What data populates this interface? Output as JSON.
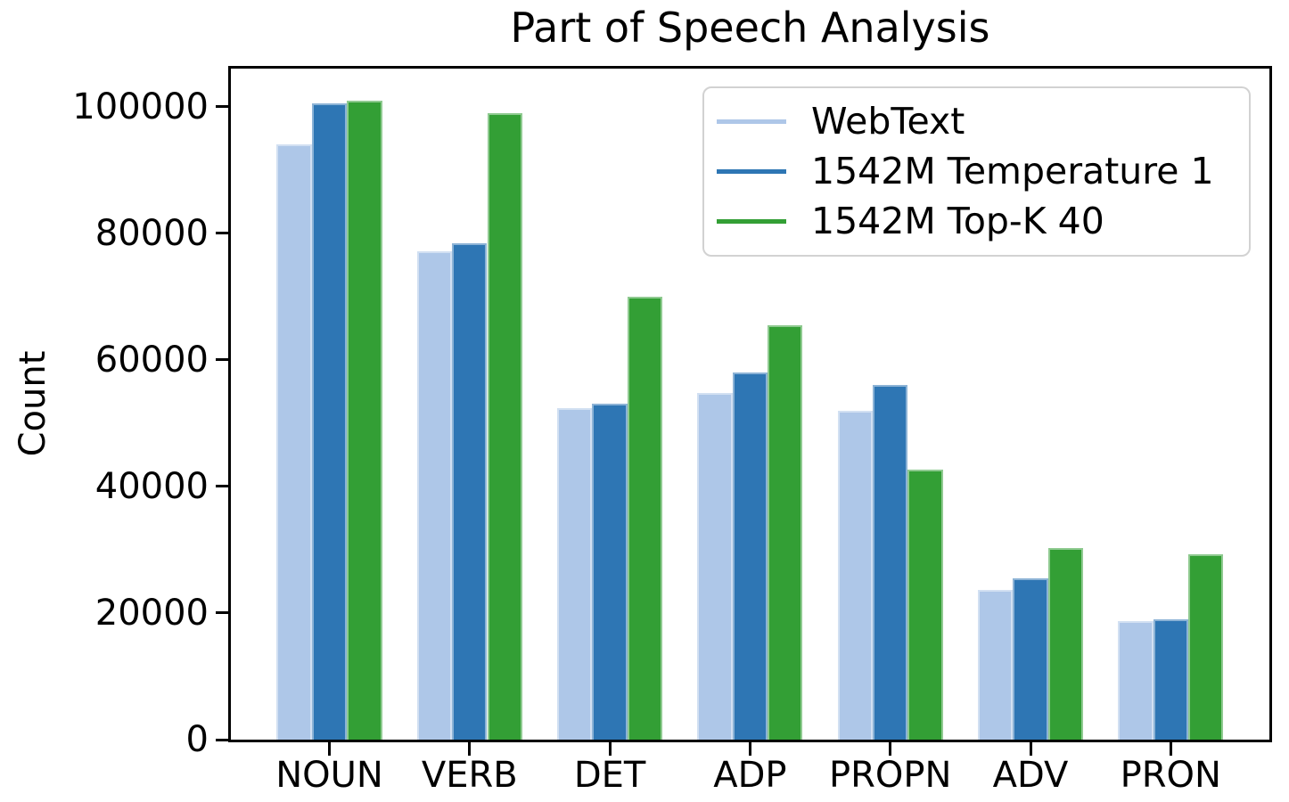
{
  "title": "Part of Speech Analysis",
  "ylabel": "Count",
  "chart_data": {
    "type": "bar",
    "title": "Part of Speech Analysis",
    "xlabel": "",
    "ylabel": "Count",
    "categories": [
      "NOUN",
      "VERB",
      "DET",
      "ADP",
      "PROPN",
      "ADV",
      "PRON"
    ],
    "series": [
      {
        "name": "WebText",
        "color": "#aec7e8",
        "values": [
          94000,
          77200,
          52300,
          54800,
          52000,
          23600,
          18700
        ]
      },
      {
        "name": "1542M Temperature 1",
        "color": "#2e76b4",
        "values": [
          100500,
          78400,
          53100,
          58000,
          56000,
          25500,
          19000
        ]
      },
      {
        "name": "1542M Top-K 40",
        "color": "#339f35",
        "values": [
          101000,
          99000,
          70000,
          65500,
          42600,
          30300,
          29300
        ]
      }
    ],
    "yticks": [
      0,
      20000,
      40000,
      60000,
      80000,
      100000
    ],
    "ylim": [
      0,
      106000
    ],
    "grid": false,
    "legend_position": "upper right"
  }
}
